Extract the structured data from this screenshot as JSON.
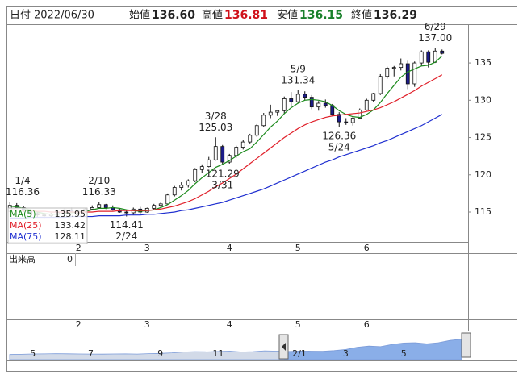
{
  "header": {
    "date_label": "日付",
    "date": "2022/06/30",
    "items": [
      {
        "name": "始値",
        "value": 136.6,
        "label": "136.60",
        "color": "#222222"
      },
      {
        "name": "高値",
        "value": 136.81,
        "color": "#d0101a"
      },
      {
        "name": "安値",
        "value": 136.15,
        "color": "#18802a"
      },
      {
        "name": "終値",
        "value": 136.29,
        "color": "#222222"
      }
    ]
  },
  "chart_data": {
    "type": "candlestick",
    "categories": [
      null,
      null,
      null,
      null,
      null,
      null,
      null,
      null,
      null,
      null,
      "2",
      null,
      null,
      null,
      null,
      null,
      null,
      null,
      null,
      null,
      "3",
      null,
      null,
      null,
      null,
      null,
      null,
      null,
      null,
      null,
      null,
      null,
      "4",
      null,
      null,
      null,
      null,
      null,
      null,
      null,
      null,
      null,
      "5",
      null,
      null,
      null,
      null,
      null,
      null,
      null,
      null,
      null,
      "6",
      null,
      null,
      null,
      null,
      null,
      null,
      null,
      null,
      null,
      null,
      null
    ],
    "open": [
      115.1,
      115.9,
      115.6,
      115.2,
      114.8,
      114.6,
      114.5,
      114.7,
      114.9,
      115.3,
      115.1,
      115.0,
      115.4,
      115.6,
      116.0,
      115.6,
      115.3,
      115.0,
      114.9,
      115.4,
      115.0,
      115.5,
      115.9,
      116.1,
      117.3,
      118.3,
      118.6,
      119.2,
      120.7,
      121.1,
      122.0,
      123.8,
      121.7,
      122.6,
      123.7,
      124.4,
      125.3,
      126.6,
      128.0,
      128.4,
      128.6,
      130.2,
      129.8,
      130.8,
      130.4,
      129.1,
      129.6,
      129.3,
      128.1,
      127.1,
      127.0,
      127.6,
      128.7,
      130.0,
      130.9,
      133.2,
      134.3,
      134.4,
      134.9,
      132.2,
      135.0,
      136.5,
      135.1,
      136.6
    ],
    "high": [
      116.36,
      116.2,
      115.8,
      115.4,
      115.0,
      114.9,
      114.9,
      115.1,
      115.5,
      115.6,
      115.3,
      115.5,
      115.9,
      116.33,
      116.1,
      115.9,
      115.5,
      115.3,
      115.6,
      115.7,
      115.6,
      116.1,
      116.3,
      117.5,
      118.5,
      119.0,
      119.4,
      120.9,
      121.4,
      122.4,
      125.03,
      124.0,
      122.8,
      123.9,
      124.7,
      125.5,
      126.8,
      128.3,
      129.4,
      128.7,
      130.5,
      131.1,
      131.34,
      131.2,
      130.7,
      129.9,
      130.1,
      129.5,
      128.4,
      127.6,
      127.8,
      128.9,
      130.2,
      131.0,
      133.5,
      134.5,
      134.6,
      135.6,
      135.3,
      135.2,
      136.7,
      136.7,
      137.0,
      136.81
    ],
    "low": [
      115.0,
      115.5,
      115.0,
      114.5,
      114.3,
      114.2,
      114.3,
      114.5,
      114.7,
      114.9,
      114.8,
      114.9,
      115.3,
      115.5,
      115.4,
      115.2,
      114.9,
      114.41,
      114.6,
      114.8,
      114.9,
      115.3,
      115.6,
      116.0,
      117.1,
      117.9,
      118.3,
      119.0,
      120.3,
      121.0,
      121.9,
      121.29,
      121.5,
      122.3,
      123.4,
      124.2,
      125.1,
      126.4,
      127.6,
      127.9,
      128.2,
      129.2,
      129.6,
      130.0,
      128.8,
      128.6,
      129.0,
      127.9,
      126.36,
      126.7,
      126.6,
      127.5,
      128.6,
      129.8,
      130.7,
      132.9,
      133.2,
      134.0,
      131.5,
      131.8,
      134.6,
      134.4,
      135.0,
      136.15
    ],
    "close": [
      115.9,
      115.6,
      115.2,
      114.8,
      114.6,
      114.5,
      114.7,
      114.9,
      115.3,
      115.1,
      115.0,
      115.4,
      115.6,
      116.0,
      115.6,
      115.3,
      115.0,
      114.9,
      115.4,
      115.0,
      115.5,
      115.9,
      116.1,
      117.3,
      118.3,
      118.6,
      119.2,
      120.7,
      121.1,
      122.0,
      123.8,
      121.7,
      122.6,
      123.7,
      124.4,
      125.3,
      126.6,
      128.0,
      128.4,
      128.6,
      130.2,
      129.8,
      130.8,
      130.4,
      129.1,
      129.6,
      129.3,
      128.1,
      127.1,
      127.0,
      127.6,
      128.7,
      130.0,
      130.9,
      133.2,
      134.3,
      134.4,
      134.9,
      132.2,
      135.0,
      136.5,
      135.1,
      136.6,
      136.29
    ],
    "up_color": "#ffffff",
    "down_color": "#1c1c8a",
    "series": [
      {
        "name": "MA(5)",
        "color": "#1c8a1c",
        "legend_value": 135.95,
        "values": [
          115.8,
          115.7,
          115.5,
          115.3,
          115.0,
          114.8,
          114.7,
          114.7,
          114.8,
          114.9,
          115.0,
          115.1,
          115.3,
          115.5,
          115.5,
          115.6,
          115.5,
          115.3,
          115.2,
          115.1,
          115.2,
          115.3,
          115.6,
          116.0,
          116.6,
          117.2,
          117.9,
          118.8,
          119.6,
          120.3,
          121.0,
          121.4,
          121.9,
          122.5,
          123.1,
          123.5,
          124.4,
          125.4,
          126.4,
          127.2,
          128.2,
          129.0,
          129.6,
          130.0,
          130.1,
          130.0,
          129.8,
          129.3,
          128.6,
          128.1,
          127.8,
          127.7,
          128.1,
          128.7,
          129.7,
          130.9,
          132.0,
          133.1,
          133.8,
          134.2,
          134.6,
          134.7,
          135.1,
          135.95
        ]
      },
      {
        "name": "MA(25)",
        "color": "#e0202a",
        "legend_value": 133.42,
        "values": [
          115.3,
          115.3,
          115.2,
          115.2,
          115.1,
          115.1,
          115.0,
          115.0,
          115.0,
          115.0,
          115.0,
          115.0,
          115.0,
          115.1,
          115.1,
          115.1,
          115.2,
          115.2,
          115.2,
          115.2,
          115.2,
          115.3,
          115.4,
          115.6,
          115.8,
          116.1,
          116.4,
          116.8,
          117.3,
          117.8,
          118.4,
          118.9,
          119.5,
          120.1,
          120.8,
          121.5,
          122.2,
          122.9,
          123.6,
          124.3,
          125.0,
          125.6,
          126.2,
          126.7,
          127.1,
          127.4,
          127.7,
          127.9,
          128.0,
          128.1,
          128.2,
          128.3,
          128.5,
          128.7,
          129.0,
          129.4,
          129.8,
          130.3,
          130.8,
          131.3,
          131.9,
          132.4,
          132.9,
          133.42
        ]
      },
      {
        "name": "MA(75)",
        "color": "#2030d0",
        "legend_value": 128.11,
        "values": [
          114.2,
          114.2,
          114.2,
          114.3,
          114.3,
          114.3,
          114.3,
          114.3,
          114.3,
          114.4,
          114.4,
          114.4,
          114.4,
          114.5,
          114.5,
          114.5,
          114.5,
          114.6,
          114.6,
          114.6,
          114.7,
          114.7,
          114.8,
          114.9,
          115.0,
          115.2,
          115.3,
          115.5,
          115.7,
          115.9,
          116.1,
          116.3,
          116.6,
          116.9,
          117.2,
          117.5,
          117.8,
          118.1,
          118.5,
          118.9,
          119.3,
          119.7,
          120.1,
          120.5,
          120.9,
          121.3,
          121.7,
          122.0,
          122.4,
          122.7,
          123.0,
          123.3,
          123.6,
          123.9,
          124.3,
          124.6,
          125.0,
          125.4,
          125.8,
          126.2,
          126.6,
          127.1,
          127.6,
          128.11
        ]
      }
    ],
    "ylim": [
      111,
      140.2
    ],
    "yticks": [
      115,
      120,
      125,
      130,
      135
    ],
    "grid": false,
    "annotations": [
      {
        "date": "1/4",
        "value": 116.36,
        "position": "above"
      },
      {
        "date": "2/10",
        "value": 116.33,
        "position": "above"
      },
      {
        "date": "2/24",
        "value": 114.41,
        "position": "below"
      },
      {
        "date": "3/28",
        "value": 125.03,
        "position": "above"
      },
      {
        "date": "3/31",
        "value": 121.29,
        "position": "below"
      },
      {
        "date": "5/9",
        "value": 131.34,
        "position": "above"
      },
      {
        "date": "5/24",
        "value": 126.36,
        "position": "below"
      },
      {
        "date": "6/29",
        "value": 137,
        "label": "137.00",
        "position": "above"
      }
    ],
    "volume": {
      "label": "出来高",
      "value": 0
    },
    "navigator": {
      "categories": [
        null,
        null,
        "5",
        null,
        null,
        null,
        null,
        "7",
        null,
        null,
        null,
        null,
        null,
        "9",
        null,
        null,
        null,
        null,
        "11",
        null,
        null,
        null,
        null,
        null,
        null,
        "2/1",
        null,
        null,
        null,
        "3",
        null,
        null,
        null,
        null,
        "5",
        null,
        null,
        null,
        null,
        null
      ],
      "values": [
        109,
        109.5,
        110,
        110.2,
        110.5,
        110.3,
        110,
        109.8,
        109.7,
        110,
        110.2,
        109.8,
        110.5,
        111,
        112,
        113.5,
        114,
        113.8,
        114.5,
        115,
        113.5,
        114,
        115.5,
        115,
        114.5,
        115.2,
        115,
        114.8,
        116,
        118,
        122,
        124,
        123,
        127,
        129.5,
        130,
        128,
        130,
        134,
        136.3
      ],
      "ylim": [
        100,
        140
      ],
      "color": "#8aaee8"
    }
  }
}
